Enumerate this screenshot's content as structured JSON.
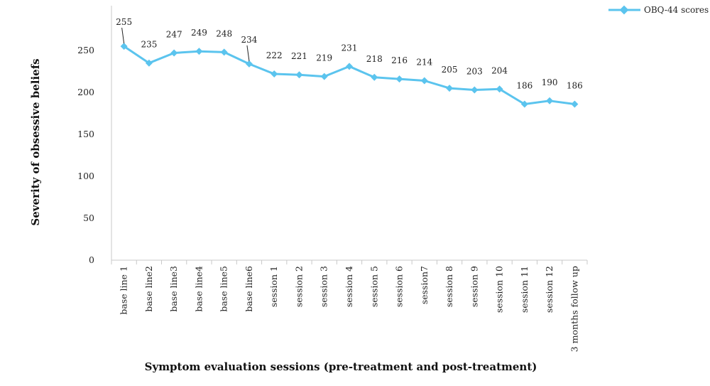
{
  "chart_data": {
    "type": "line",
    "title": "",
    "xlabel": "Symptom evaluation sessions (pre-treatment and post-treatment)",
    "ylabel": "Severity of obsessive beliefs",
    "ylim": [
      0,
      300
    ],
    "yticks": [
      0,
      50,
      100,
      150,
      200,
      250
    ],
    "grid": false,
    "legend_position": "top-right",
    "categories": [
      "base line 1",
      "base line2",
      "base line3",
      "base line4",
      "base line5",
      "base line6",
      "session 1",
      "session 2",
      "session 3",
      "session 4",
      "session 5",
      "session 6",
      "session7",
      "session 8",
      "session 9",
      "session 10",
      "session 11",
      "session 12",
      "3 months follow up"
    ],
    "series": [
      {
        "name": "OBQ-44 scores",
        "color": "#5bc4ee",
        "marker": "diamond",
        "values": [
          255,
          235,
          247,
          249,
          248,
          234,
          222,
          221,
          219,
          231,
          218,
          216,
          214,
          205,
          203,
          204,
          186,
          190,
          186
        ],
        "labels": [
          "255",
          "235",
          "247",
          "249",
          "248",
          "234",
          "222",
          "221",
          "219",
          "231",
          "218",
          "216",
          "214",
          "205",
          "203",
          "204",
          "186",
          "190",
          "186"
        ]
      }
    ]
  }
}
